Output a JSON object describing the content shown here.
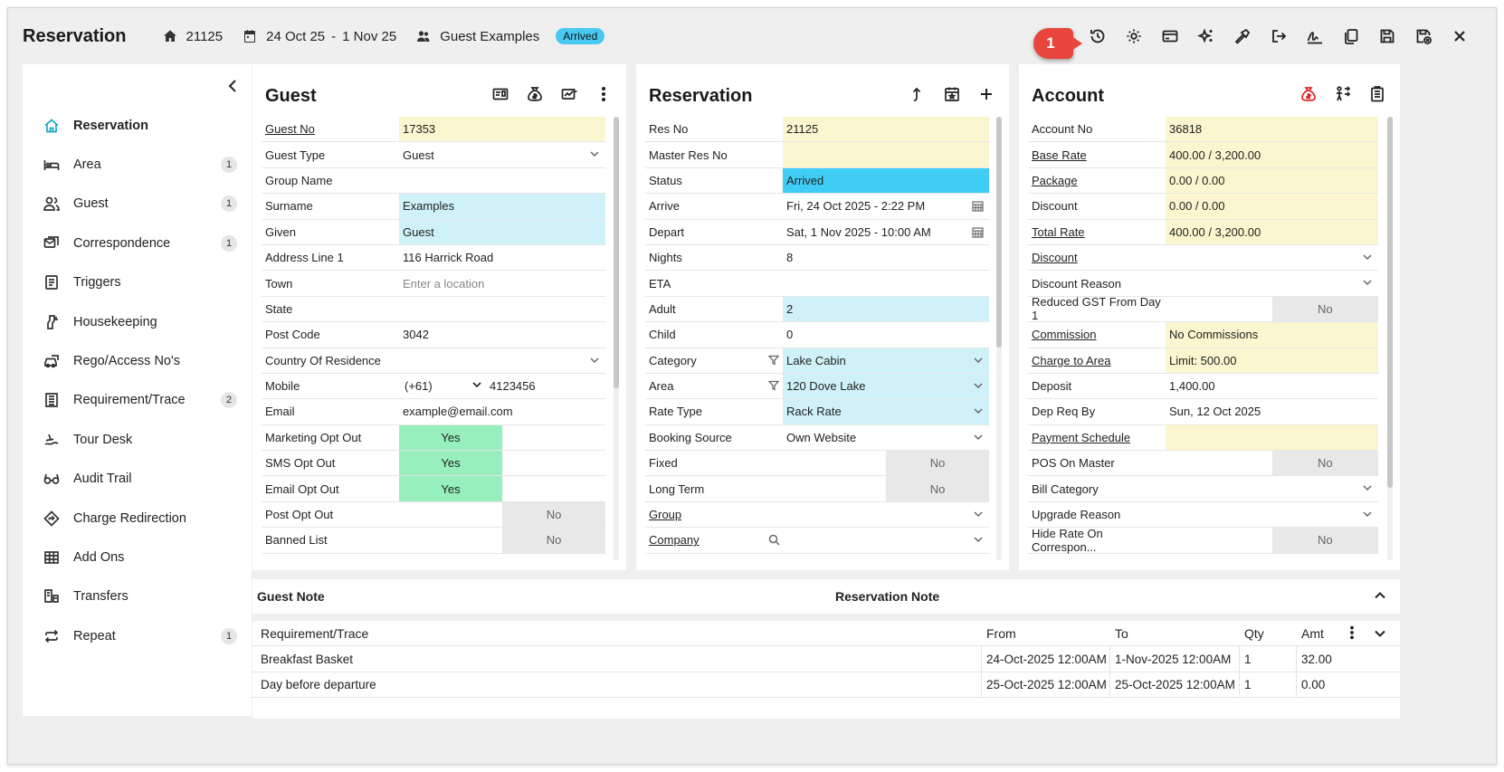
{
  "header": {
    "title": "Reservation",
    "res_no": "21125",
    "date_from": "24 Oct 25",
    "date_sep": "-",
    "date_to": "1 Nov 25",
    "guest_name": "Guest Examples",
    "status_badge": "Arrived",
    "marker_number": "1",
    "toolbar_icons": [
      "history-icon",
      "settings-icon",
      "credit-card-icon",
      "sparkle-icon",
      "hammer-icon",
      "checkout-icon",
      "signature-icon",
      "copy-icon",
      "save-icon",
      "save-close-icon",
      "close-icon"
    ]
  },
  "sidebar": {
    "items": [
      {
        "label": "Reservation",
        "count": "",
        "icon": "home-icon"
      },
      {
        "label": "Area",
        "count": "1",
        "icon": "bed-icon"
      },
      {
        "label": "Guest",
        "count": "1",
        "icon": "users-icon"
      },
      {
        "label": "Correspondence",
        "count": "1",
        "icon": "mail-icon"
      },
      {
        "label": "Triggers",
        "count": "",
        "icon": "trigger-icon"
      },
      {
        "label": "Housekeeping",
        "count": "",
        "icon": "housekeeping-icon"
      },
      {
        "label": "Rego/Access No's",
        "count": "",
        "icon": "car-icon"
      },
      {
        "label": "Requirement/Trace",
        "count": "2",
        "icon": "list-icon"
      },
      {
        "label": "Tour Desk",
        "count": "",
        "icon": "tour-icon"
      },
      {
        "label": "Audit Trail",
        "count": "",
        "icon": "glasses-icon"
      },
      {
        "label": "Charge Redirection",
        "count": "",
        "icon": "redirect-icon"
      },
      {
        "label": "Add Ons",
        "count": "",
        "icon": "grid-icon"
      },
      {
        "label": "Transfers",
        "count": "",
        "icon": "transfer-icon"
      },
      {
        "label": "Repeat",
        "count": "1",
        "icon": "repeat-icon"
      }
    ]
  },
  "guest": {
    "title": "Guest",
    "rows": {
      "guest_no": {
        "label": "Guest No",
        "value": "17353"
      },
      "guest_type": {
        "label": "Guest Type",
        "value": "Guest"
      },
      "group_name": {
        "label": "Group Name",
        "value": ""
      },
      "surname": {
        "label": "Surname",
        "value": "Examples"
      },
      "given": {
        "label": "Given",
        "value": "Guest"
      },
      "address": {
        "label": "Address Line 1",
        "value": "116 Harrick Road"
      },
      "town": {
        "label": "Town",
        "placeholder": "Enter a location"
      },
      "state": {
        "label": "State",
        "value": ""
      },
      "post_code": {
        "label": "Post Code",
        "value": "3042"
      },
      "country": {
        "label": "Country Of Residence",
        "value": ""
      },
      "mobile": {
        "label": "Mobile",
        "prefix": "(+61)",
        "value": "4123456"
      },
      "email": {
        "label": "Email",
        "value": "example@email.com"
      },
      "marketing": {
        "label": "Marketing Opt Out",
        "value": "Yes"
      },
      "sms": {
        "label": "SMS Opt Out",
        "value": "Yes"
      },
      "email_opt": {
        "label": "Email Opt Out",
        "value": "Yes"
      },
      "post_opt": {
        "label": "Post Opt Out",
        "value": "No"
      },
      "banned": {
        "label": "Banned List",
        "value": "No"
      }
    }
  },
  "reservation": {
    "title": "Reservation",
    "rows": {
      "res_no": {
        "label": "Res No",
        "value": "21125"
      },
      "master": {
        "label": "Master Res No",
        "value": ""
      },
      "status": {
        "label": "Status",
        "value": "Arrived"
      },
      "arrive": {
        "label": "Arrive",
        "value": "Fri, 24 Oct 2025 - 2:22 PM"
      },
      "depart": {
        "label": "Depart",
        "value": "Sat, 1 Nov 2025 - 10:00 AM"
      },
      "nights": {
        "label": "Nights",
        "value": "8"
      },
      "eta": {
        "label": "ETA",
        "value": ""
      },
      "adult": {
        "label": "Adult",
        "value": "2"
      },
      "child": {
        "label": "Child",
        "value": "0"
      },
      "category": {
        "label": "Category",
        "value": "Lake Cabin"
      },
      "area": {
        "label": "Area",
        "value": "120 Dove Lake"
      },
      "rate_type": {
        "label": "Rate Type",
        "value": "Rack Rate"
      },
      "booking_source": {
        "label": "Booking Source",
        "value": "Own Website"
      },
      "fixed": {
        "label": "Fixed",
        "value": "No"
      },
      "long_term": {
        "label": "Long Term",
        "value": "No"
      },
      "group": {
        "label": "Group",
        "value": ""
      },
      "company": {
        "label": "Company",
        "value": ""
      }
    }
  },
  "account": {
    "title": "Account",
    "rows": {
      "account_no": {
        "label": "Account No",
        "value": "36818"
      },
      "base_rate": {
        "label": "Base Rate",
        "value": "400.00 / 3,200.00"
      },
      "package": {
        "label": "Package",
        "value": "0.00 / 0.00"
      },
      "discount_amt": {
        "label": "Discount",
        "value": "0.00 / 0.00"
      },
      "total_rate": {
        "label": "Total Rate",
        "value": "400.00 / 3,200.00"
      },
      "discount": {
        "label": "Discount",
        "value": ""
      },
      "discount_reason": {
        "label": "Discount Reason",
        "value": ""
      },
      "reduced_gst": {
        "label": "Reduced GST From Day 1",
        "value": "No"
      },
      "commission": {
        "label": "Commission",
        "value": "No Commissions"
      },
      "charge_area": {
        "label": "Charge to Area",
        "value": "Limit: 500.00"
      },
      "deposit": {
        "label": "Deposit",
        "value": "1,400.00"
      },
      "dep_req_by": {
        "label": "Dep Req By",
        "value": "Sun, 12 Oct 2025"
      },
      "payment_schedule": {
        "label": "Payment Schedule",
        "value": ""
      },
      "pos_master": {
        "label": "POS On Master",
        "value": "No"
      },
      "bill_category": {
        "label": "Bill Category",
        "value": ""
      },
      "upgrade_reason": {
        "label": "Upgrade Reason",
        "value": ""
      },
      "hide_rate": {
        "label": "Hide Rate On Correspon...",
        "value": "No"
      }
    }
  },
  "notes": {
    "guest_note": "Guest Note",
    "reservation_note": "Reservation Note"
  },
  "requirements": {
    "headers": {
      "name": "Requirement/Trace",
      "from": "From",
      "to": "To",
      "qty": "Qty",
      "amt": "Amt"
    },
    "rows": [
      {
        "name": "Breakfast Basket",
        "from": "24-Oct-2025 12:00AM",
        "to": "1-Nov-2025 12:00AM",
        "qty": "1",
        "amt": "32.00"
      },
      {
        "name": "Day before departure",
        "from": "25-Oct-2025 12:00AM",
        "to": "25-Oct-2025 12:00AM",
        "qty": "1",
        "amt": "0.00"
      }
    ]
  },
  "colors": {
    "status_blue": "#3fcdf6",
    "yellow_field": "#fbf6cf",
    "cyan_field": "#cff2f8",
    "yes_green": "#96efbd",
    "marker_red": "#e8453c",
    "accent": "#1fa5c9"
  }
}
